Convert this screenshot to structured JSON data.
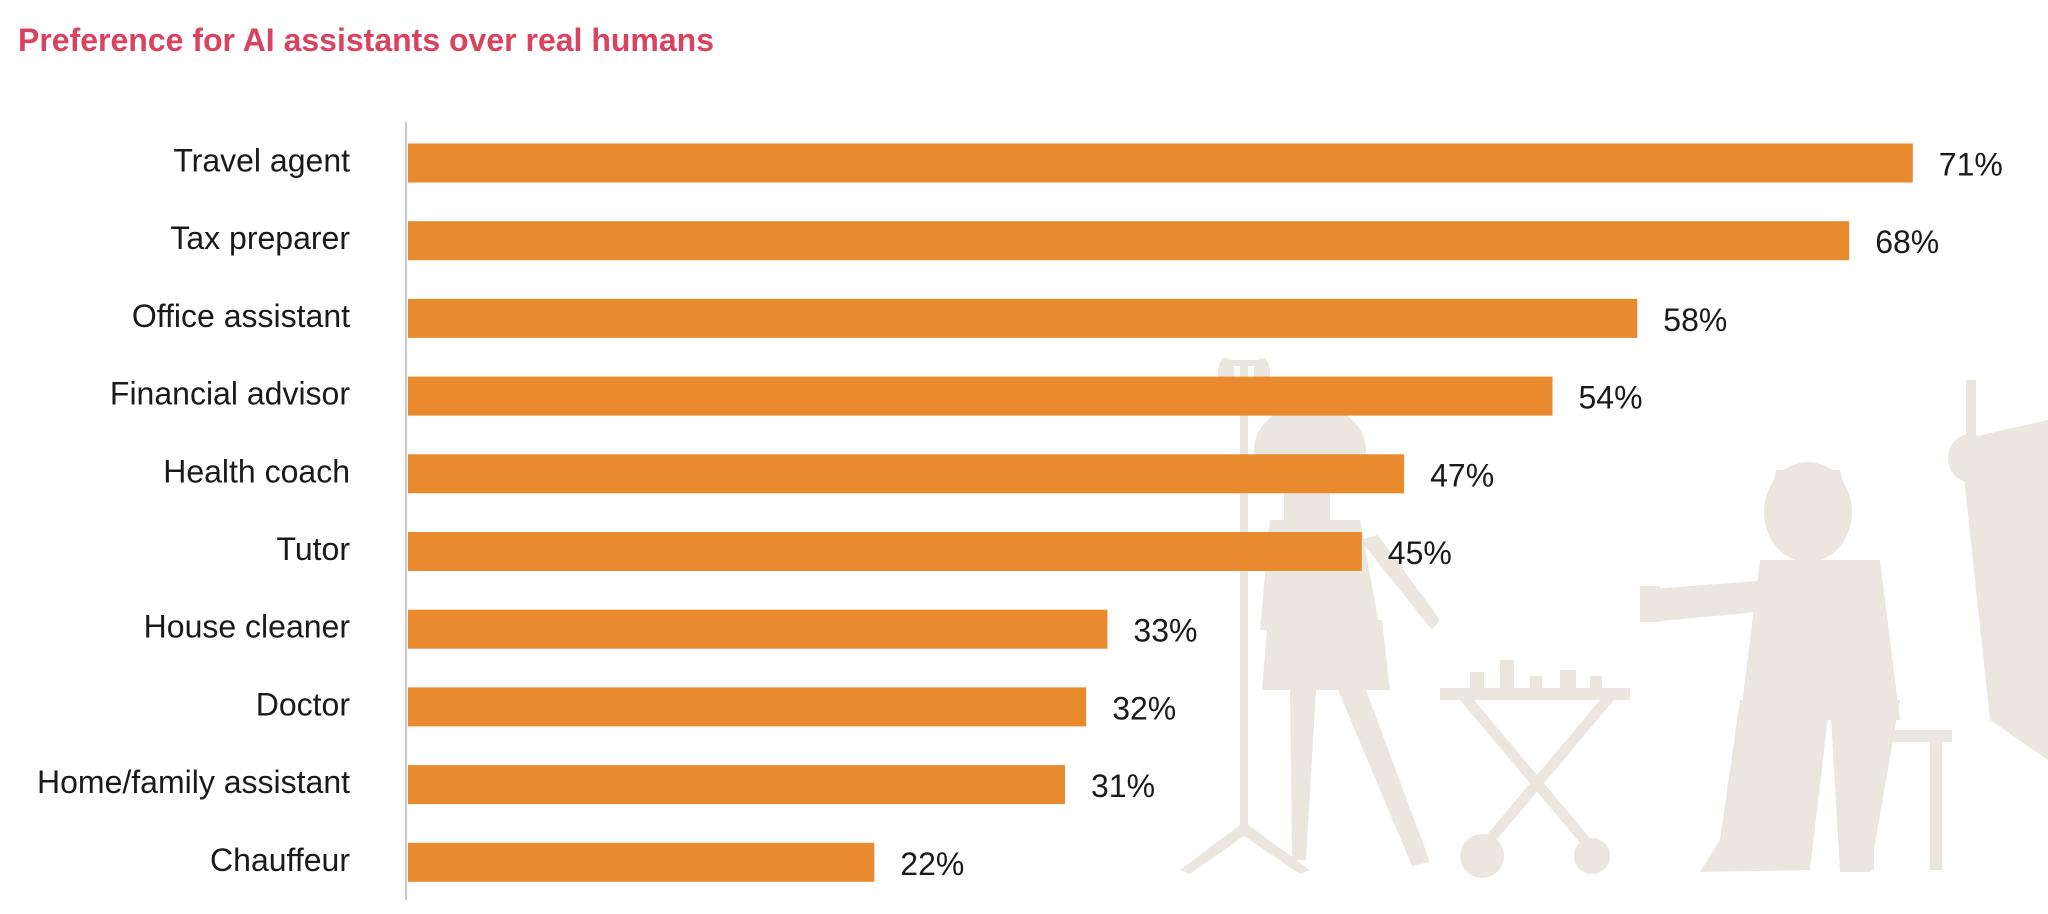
{
  "colors": {
    "bar": "#ea8a2f",
    "title": "#d9435f",
    "axis": "#c8c8c8",
    "silhouette": "#ebe7e0"
  },
  "chart_data": {
    "type": "bar",
    "orientation": "horizontal",
    "title": "Preference for AI assistants over real humans",
    "categories": [
      "Travel agent",
      "Tax preparer",
      "Office assistant",
      "Financial advisor",
      "Health coach",
      "Tutor",
      "House cleaner",
      "Doctor",
      "Home/family assistant",
      "Chauffeur"
    ],
    "values": [
      71,
      68,
      58,
      54,
      47,
      45,
      33,
      32,
      31,
      22
    ],
    "value_labels": [
      "71%",
      "68%",
      "58%",
      "54%",
      "47%",
      "45%",
      "33%",
      "32%",
      "31%",
      "22%"
    ],
    "unit": "%",
    "xlim": [
      0,
      72
    ],
    "grid": false,
    "legend": "none"
  }
}
